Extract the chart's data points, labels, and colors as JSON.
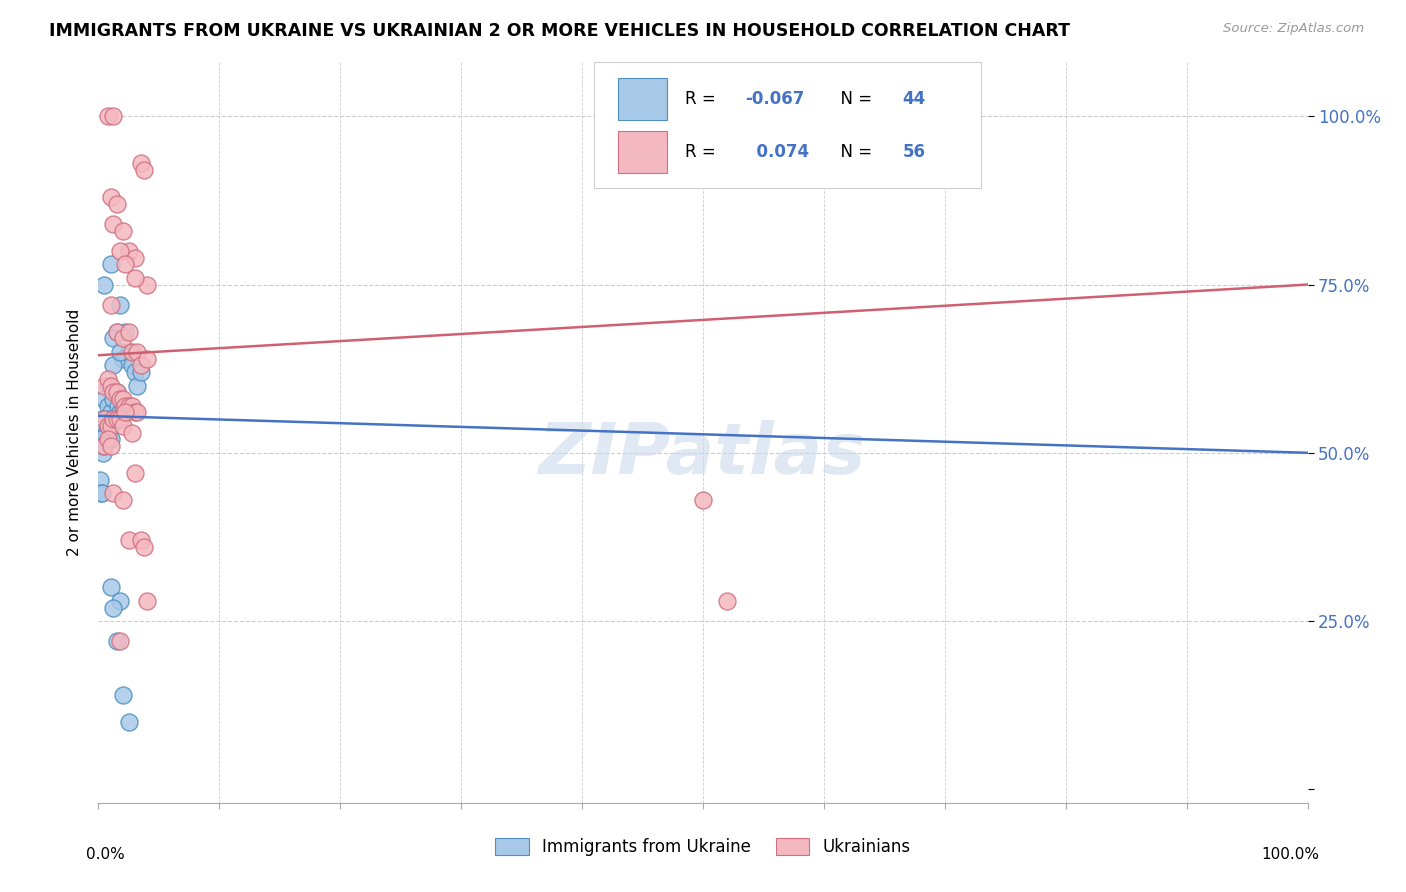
{
  "title": "IMMIGRANTS FROM UKRAINE VS UKRAINIAN 2 OR MORE VEHICLES IN HOUSEHOLD CORRELATION CHART",
  "source": "Source: ZipAtlas.com",
  "ylabel": "2 or more Vehicles in Household",
  "watermark": "ZIPatlas",
  "legend_blue_r": "-0.067",
  "legend_blue_n": "44",
  "legend_pink_r": "0.074",
  "legend_pink_n": "56",
  "blue_color": "#a8c8e8",
  "pink_color": "#f4b8c0",
  "blue_edge_color": "#5090c0",
  "pink_edge_color": "#d07080",
  "blue_line_color": "#4472c4",
  "pink_line_color": "#d06070",
  "grid_color": "#cccccc",
  "right_label_color": "#4472c4",
  "blue_line_x": [
    0.0,
    1.0
  ],
  "blue_line_y": [
    0.555,
    0.5
  ],
  "pink_line_x": [
    0.0,
    1.0
  ],
  "pink_line_y": [
    0.645,
    0.75
  ],
  "blue_scatter": [
    [
      0.01,
      0.78
    ],
    [
      0.018,
      0.72
    ],
    [
      0.022,
      0.68
    ],
    [
      0.025,
      0.65
    ],
    [
      0.02,
      0.64
    ],
    [
      0.015,
      0.68
    ],
    [
      0.028,
      0.63
    ],
    [
      0.03,
      0.62
    ],
    [
      0.008,
      0.6
    ],
    [
      0.012,
      0.63
    ],
    [
      0.032,
      0.6
    ],
    [
      0.005,
      0.75
    ],
    [
      0.035,
      0.62
    ],
    [
      0.012,
      0.67
    ],
    [
      0.018,
      0.65
    ],
    [
      0.005,
      0.58
    ],
    [
      0.008,
      0.57
    ],
    [
      0.01,
      0.56
    ],
    [
      0.012,
      0.58
    ],
    [
      0.015,
      0.59
    ],
    [
      0.016,
      0.57
    ],
    [
      0.018,
      0.56
    ],
    [
      0.02,
      0.57
    ],
    [
      0.022,
      0.56
    ],
    [
      0.003,
      0.55
    ],
    [
      0.005,
      0.54
    ],
    [
      0.006,
      0.53
    ],
    [
      0.007,
      0.55
    ],
    [
      0.008,
      0.54
    ],
    [
      0.009,
      0.53
    ],
    [
      0.01,
      0.52
    ],
    [
      0.002,
      0.52
    ],
    [
      0.003,
      0.51
    ],
    [
      0.004,
      0.5
    ],
    [
      0.005,
      0.51
    ],
    [
      0.001,
      0.46
    ],
    [
      0.002,
      0.44
    ],
    [
      0.003,
      0.44
    ],
    [
      0.01,
      0.3
    ],
    [
      0.018,
      0.28
    ],
    [
      0.012,
      0.27
    ],
    [
      0.015,
      0.22
    ],
    [
      0.02,
      0.14
    ],
    [
      0.025,
      0.1
    ]
  ],
  "pink_scatter": [
    [
      0.008,
      1.0
    ],
    [
      0.012,
      1.0
    ],
    [
      0.035,
      0.93
    ],
    [
      0.038,
      0.92
    ],
    [
      0.01,
      0.88
    ],
    [
      0.015,
      0.87
    ],
    [
      0.012,
      0.84
    ],
    [
      0.02,
      0.83
    ],
    [
      0.025,
      0.8
    ],
    [
      0.03,
      0.79
    ],
    [
      0.018,
      0.8
    ],
    [
      0.022,
      0.78
    ],
    [
      0.04,
      0.75
    ],
    [
      0.03,
      0.76
    ],
    [
      0.01,
      0.72
    ],
    [
      0.015,
      0.68
    ],
    [
      0.02,
      0.67
    ],
    [
      0.025,
      0.68
    ],
    [
      0.028,
      0.65
    ],
    [
      0.032,
      0.65
    ],
    [
      0.035,
      0.63
    ],
    [
      0.04,
      0.64
    ],
    [
      0.005,
      0.6
    ],
    [
      0.008,
      0.61
    ],
    [
      0.01,
      0.6
    ],
    [
      0.012,
      0.59
    ],
    [
      0.015,
      0.59
    ],
    [
      0.018,
      0.58
    ],
    [
      0.02,
      0.58
    ],
    [
      0.022,
      0.57
    ],
    [
      0.025,
      0.57
    ],
    [
      0.028,
      0.57
    ],
    [
      0.03,
      0.56
    ],
    [
      0.032,
      0.56
    ],
    [
      0.005,
      0.55
    ],
    [
      0.008,
      0.54
    ],
    [
      0.01,
      0.54
    ],
    [
      0.012,
      0.55
    ],
    [
      0.015,
      0.55
    ],
    [
      0.018,
      0.55
    ],
    [
      0.02,
      0.54
    ],
    [
      0.022,
      0.56
    ],
    [
      0.005,
      0.51
    ],
    [
      0.008,
      0.52
    ],
    [
      0.01,
      0.51
    ],
    [
      0.012,
      0.44
    ],
    [
      0.02,
      0.43
    ],
    [
      0.018,
      0.22
    ],
    [
      0.025,
      0.37
    ],
    [
      0.5,
      0.43
    ],
    [
      0.035,
      0.37
    ],
    [
      0.038,
      0.36
    ],
    [
      0.028,
      0.53
    ],
    [
      0.03,
      0.47
    ],
    [
      0.52,
      0.28
    ],
    [
      0.04,
      0.28
    ]
  ],
  "xlim": [
    0.0,
    1.0
  ],
  "ylim": [
    -0.02,
    1.08
  ],
  "yticks": [
    0.0,
    0.25,
    0.5,
    0.75,
    1.0
  ]
}
